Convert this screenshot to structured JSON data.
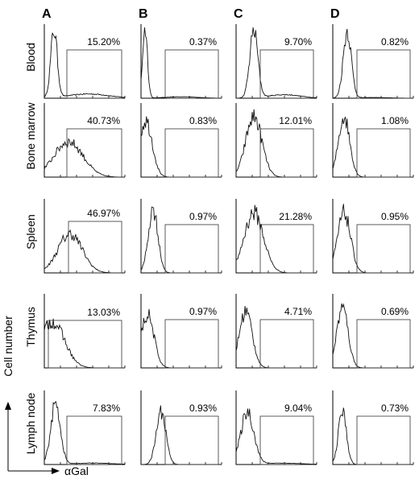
{
  "chart_data": {
    "type": "histogram-grid",
    "columns": [
      "A",
      "B",
      "C",
      "D"
    ],
    "rows": [
      "Blood",
      "Bone marrow",
      "Spleen",
      "Thymus",
      "Lymph node"
    ],
    "gated_percent": [
      [
        "15.20%",
        "0.37%",
        "9.70%",
        "0.82%"
      ],
      [
        "40.73%",
        "0.83%",
        "12.01%",
        "1.08%"
      ],
      [
        "46.97%",
        "0.97%",
        "21.28%",
        "0.95%"
      ],
      [
        "13.03%",
        "0.97%",
        "4.71%",
        "0.69%"
      ],
      [
        "7.83%",
        "0.93%",
        "9.04%",
        "0.73%"
      ]
    ],
    "xlabel": "αGal",
    "ylabel": "Cell number"
  }
}
